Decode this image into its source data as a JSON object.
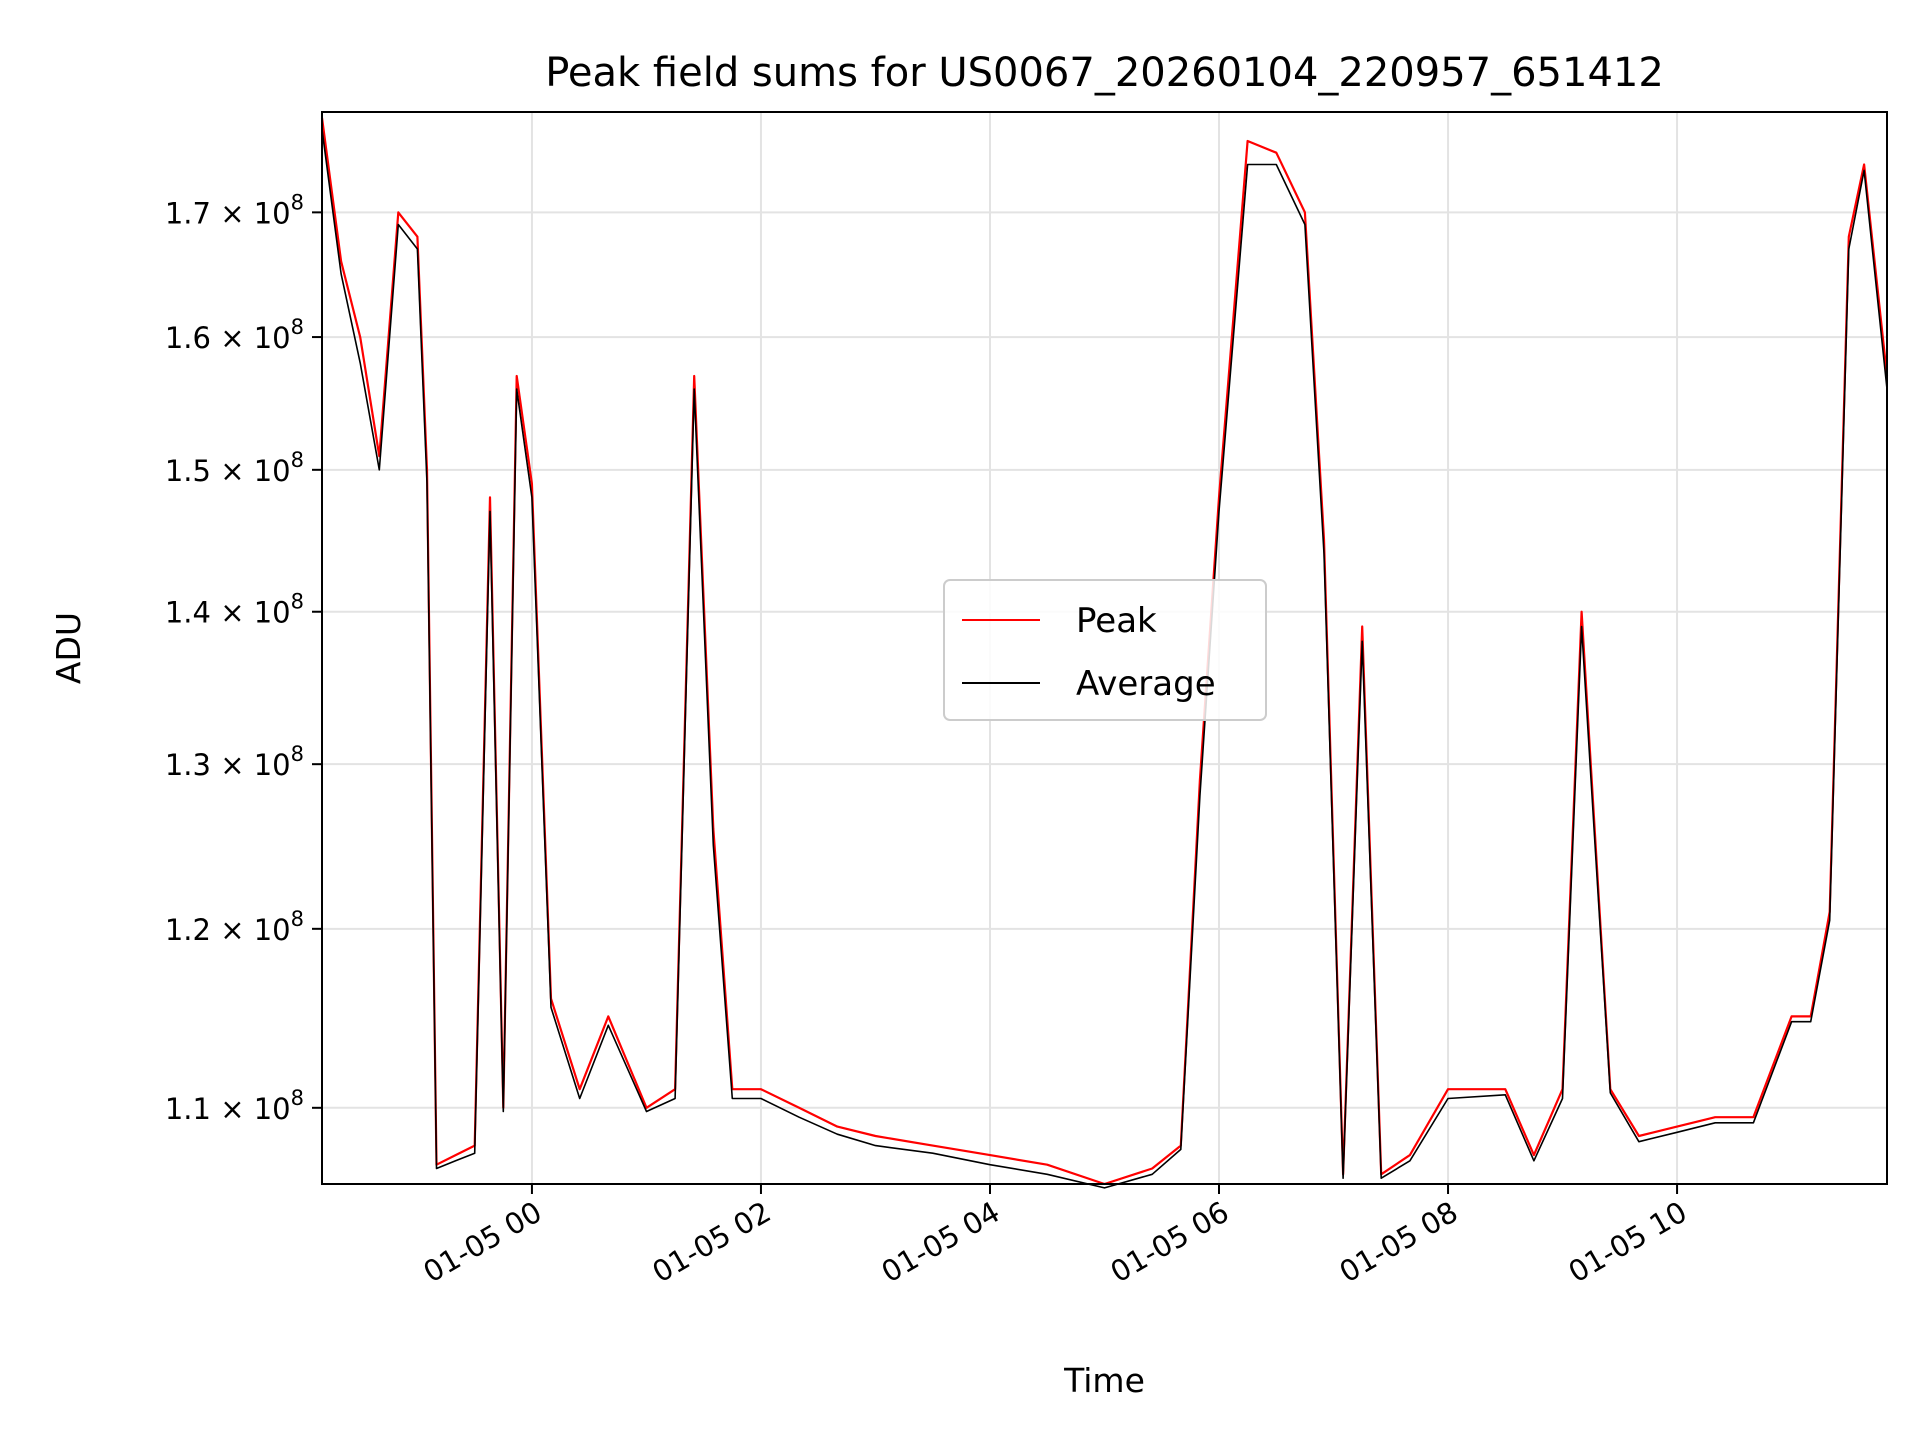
{
  "chart_data": {
    "type": "line",
    "title": "Peak field sums for US0067_20260104_220957_651412",
    "xlabel": "Time",
    "ylabel": "ADU",
    "yscale": "log",
    "xlim": [
      "2026-01-04 22:10",
      "2026-01-05 11:50"
    ],
    "ylim": [
      106000000,
      178500000
    ],
    "grid": true,
    "legend_position": "center",
    "x_ticks": [
      "01-05 00",
      "01-05 02",
      "01-05 04",
      "01-05 06",
      "01-05 08",
      "01-05 10"
    ],
    "x_tick_times": [
      "2026-01-05 00:00",
      "2026-01-05 02:00",
      "2026-01-05 04:00",
      "2026-01-05 06:00",
      "2026-01-05 08:00",
      "2026-01-05 10:00"
    ],
    "y_ticks": [
      {
        "value": 110000000,
        "mantissa": "1.1",
        "exp": "8"
      },
      {
        "value": 120000000,
        "mantissa": "1.2",
        "exp": "8"
      },
      {
        "value": 130000000,
        "mantissa": "1.3",
        "exp": "8"
      },
      {
        "value": 140000000,
        "mantissa": "1.4",
        "exp": "8"
      },
      {
        "value": 150000000,
        "mantissa": "1.5",
        "exp": "8"
      },
      {
        "value": 160000000,
        "mantissa": "1.6",
        "exp": "8"
      },
      {
        "value": 170000000,
        "mantissa": "1.7",
        "exp": "8"
      }
    ],
    "x": [
      "2026-01-04 22:10",
      "2026-01-04 22:20",
      "2026-01-04 22:30",
      "2026-01-04 22:40",
      "2026-01-04 22:50",
      "2026-01-04 23:00",
      "2026-01-04 23:05",
      "2026-01-04 23:10",
      "2026-01-04 23:20",
      "2026-01-04 23:30",
      "2026-01-04 23:38",
      "2026-01-04 23:45",
      "2026-01-04 23:52",
      "2026-01-05 00:00",
      "2026-01-05 00:10",
      "2026-01-05 00:25",
      "2026-01-05 00:40",
      "2026-01-05 01:00",
      "2026-01-05 01:15",
      "2026-01-05 01:25",
      "2026-01-05 01:35",
      "2026-01-05 01:45",
      "2026-01-05 02:00",
      "2026-01-05 02:20",
      "2026-01-05 02:40",
      "2026-01-05 03:00",
      "2026-01-05 03:30",
      "2026-01-05 04:00",
      "2026-01-05 04:30",
      "2026-01-05 05:00",
      "2026-01-05 05:25",
      "2026-01-05 05:40",
      "2026-01-05 05:50",
      "2026-01-05 06:00",
      "2026-01-05 06:15",
      "2026-01-05 06:30",
      "2026-01-05 06:45",
      "2026-01-05 06:55",
      "2026-01-05 07:05",
      "2026-01-05 07:15",
      "2026-01-05 07:25",
      "2026-01-05 07:40",
      "2026-01-05 08:00",
      "2026-01-05 08:30",
      "2026-01-05 08:45",
      "2026-01-05 09:00",
      "2026-01-05 09:10",
      "2026-01-05 09:25",
      "2026-01-05 09:40",
      "2026-01-05 10:00",
      "2026-01-05 10:20",
      "2026-01-05 10:40",
      "2026-01-05 11:00",
      "2026-01-05 11:10",
      "2026-01-05 11:20",
      "2026-01-05 11:30",
      "2026-01-05 11:38",
      "2026-01-05 11:50"
    ],
    "series": [
      {
        "name": "Peak",
        "color": "#ff0000",
        "values": [
          178000000,
          166000000,
          160000000,
          151000000,
          170000000,
          168000000,
          150000000,
          107000000,
          107500000,
          108000000,
          148000000,
          110000000,
          157000000,
          149000000,
          116000000,
          111000000,
          115000000,
          110000000,
          111000000,
          157000000,
          126000000,
          111000000,
          111000000,
          110000000,
          109000000,
          108500000,
          108000000,
          107500000,
          107000000,
          106000000,
          106800000,
          108000000,
          129000000,
          148000000,
          176000000,
          175000000,
          170000000,
          145000000,
          106500000,
          139000000,
          106500000,
          107500000,
          111000000,
          111000000,
          107500000,
          111000000,
          140000000,
          111000000,
          108500000,
          109000000,
          109500000,
          109500000,
          115000000,
          115000000,
          121000000,
          168000000,
          174000000,
          157000000
        ]
      },
      {
        "name": "Average",
        "color": "#000000",
        "values": [
          177000000,
          165000000,
          158000000,
          150000000,
          169000000,
          167000000,
          149000000,
          106800000,
          107200000,
          107600000,
          147000000,
          109800000,
          156000000,
          148000000,
          115500000,
          110500000,
          114500000,
          109800000,
          110500000,
          156000000,
          125000000,
          110500000,
          110500000,
          109500000,
          108600000,
          108000000,
          107600000,
          107000000,
          106500000,
          105800000,
          106500000,
          107800000,
          128000000,
          147000000,
          174000000,
          174000000,
          169000000,
          144000000,
          106300000,
          138000000,
          106300000,
          107200000,
          110500000,
          110700000,
          107200000,
          110500000,
          139000000,
          110800000,
          108200000,
          108700000,
          109200000,
          109200000,
          114700000,
          114700000,
          120500000,
          167000000,
          173500000,
          156000000
        ]
      }
    ]
  }
}
